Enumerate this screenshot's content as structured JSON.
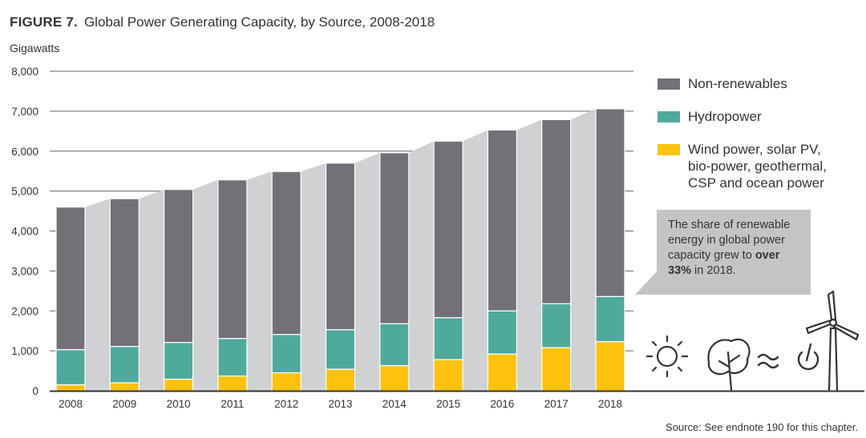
{
  "figure": {
    "label": "FIGURE 7.",
    "title": "Global Power Generating Capacity, by Source, 2008-2018"
  },
  "source": "Source: See endnote 190 for this chapter.",
  "callout": {
    "text_before": "The share of renewable energy in global power capacity grew to ",
    "text_bold": "over 33%",
    "text_after": " in 2018."
  },
  "icons": [
    "sun-icon",
    "leaf-icon",
    "wave-icon",
    "power-icon",
    "wind-turbine-icon"
  ],
  "chart_data": {
    "type": "bar",
    "stacked": true,
    "ylabel": "Gigawatts",
    "ylim": [
      0,
      8000
    ],
    "yticks": [
      "0",
      "1,000",
      "2,000",
      "3,000",
      "4,000",
      "5,000",
      "6,000",
      "7,000",
      "8,000"
    ],
    "categories": [
      "2008",
      "2009",
      "2010",
      "2011",
      "2012",
      "2013",
      "2014",
      "2015",
      "2016",
      "2017",
      "2018"
    ],
    "grid": true,
    "legend_position": "right",
    "series": [
      {
        "name": "Wind power, solar PV,\nbio-power, geothermal,\nCSP and ocean power",
        "color": "#ffc20e",
        "values": [
          150,
          200,
          290,
          370,
          450,
          540,
          630,
          780,
          920,
          1080,
          1230
        ]
      },
      {
        "name": "Hydropower",
        "color": "#4fa99d",
        "values": [
          880,
          910,
          920,
          940,
          960,
          990,
          1050,
          1050,
          1080,
          1100,
          1130
        ]
      },
      {
        "name": "Non-renewables",
        "color": "#737078",
        "values": [
          3570,
          3700,
          3830,
          3970,
          4080,
          4170,
          4280,
          4420,
          4530,
          4610,
          4700
        ]
      }
    ]
  }
}
